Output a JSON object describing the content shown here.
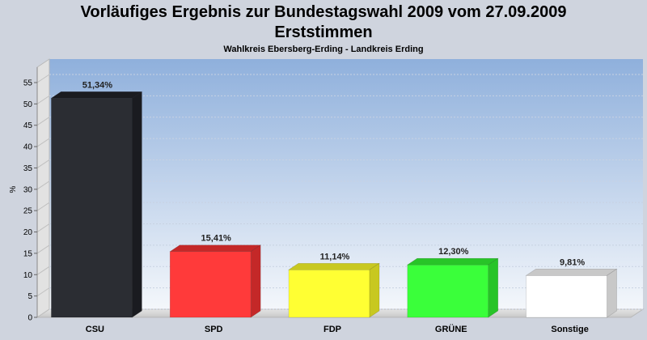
{
  "header": {
    "title": "Vorläufiges Ergebnis zur Bundestagswahl 2009 vom 27.09.2009",
    "title2": "Erststimmen",
    "subtitle": "Wahlkreis Ebersberg-Erding - Landkreis Erding"
  },
  "chart_data": {
    "type": "bar",
    "title": "Vorläufiges Ergebnis zur Bundestagswahl 2009 vom 27.09.2009 Erststimmen",
    "subtitle": "Wahlkreis Ebersberg-Erding - Landkreis Erding",
    "ylabel": "%",
    "xlabel": "",
    "ylim": [
      0,
      55
    ],
    "yticks": [
      0,
      5,
      10,
      15,
      20,
      25,
      30,
      35,
      40,
      45,
      50,
      55
    ],
    "categories": [
      "CSU",
      "SPD",
      "FDP",
      "GRÜNE",
      "Sonstige"
    ],
    "values": [
      51.34,
      15.41,
      11.14,
      12.3,
      9.81
    ],
    "value_labels": [
      "51,34%",
      "15,41%",
      "11,14%",
      "12,30%",
      "9,81%"
    ],
    "colors": [
      "#2b2d33",
      "#ff3a3a",
      "#ffff33",
      "#3aff3a",
      "#ffffff"
    ],
    "side_colors": [
      "#1a1b20",
      "#c42828",
      "#c8c820",
      "#28c428",
      "#c8c8c8"
    ],
    "grid": true
  }
}
